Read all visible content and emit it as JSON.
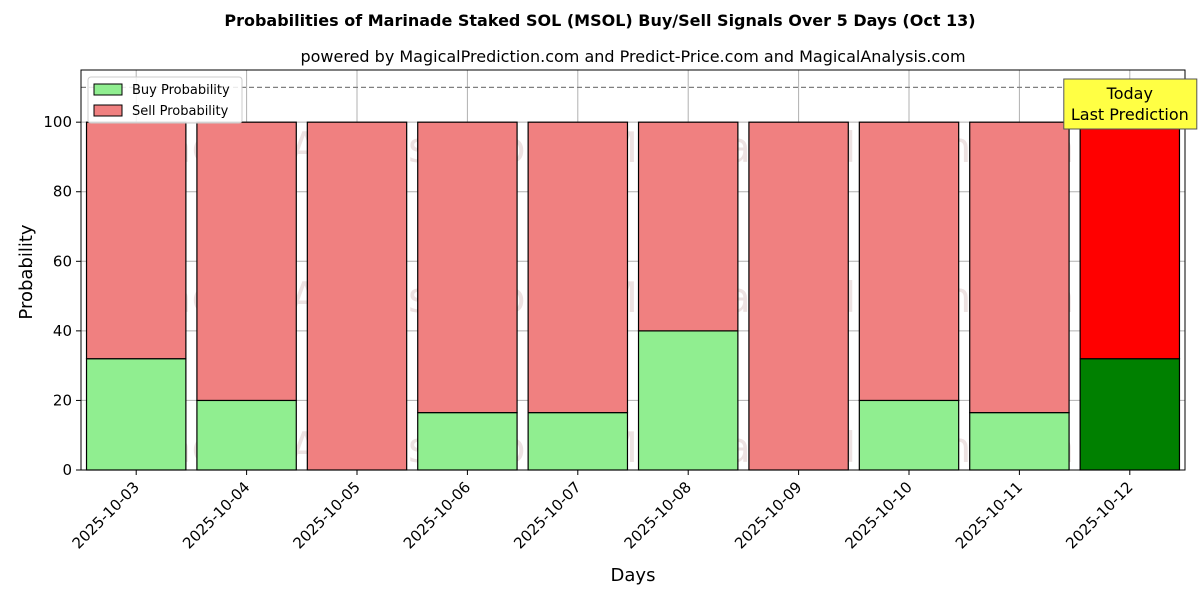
{
  "chart_data": {
    "type": "bar",
    "stacked": true,
    "title": "Probabilities of Marinade Staked SOL (MSOL) Buy/Sell Signals Over 5 Days (Oct 13)",
    "subtitle": "powered by MagicalPrediction.com and Predict-Price.com and MagicalAnalysis.com",
    "xlabel": "Days",
    "ylabel": "Probability",
    "ylim": [
      0,
      115
    ],
    "yticks": [
      0,
      20,
      40,
      60,
      80,
      100
    ],
    "reference_line": 110,
    "grid": true,
    "legend_position": "top-left",
    "categories": [
      "2025-10-03",
      "2025-10-04",
      "2025-10-05",
      "2025-10-06",
      "2025-10-07",
      "2025-10-08",
      "2025-10-09",
      "2025-10-10",
      "2025-10-11",
      "2025-10-12"
    ],
    "series": [
      {
        "name": "Buy Probability",
        "color": "#90ee90",
        "highlight_color": "#008000",
        "values": [
          32,
          20,
          0,
          16.5,
          16.5,
          40,
          0,
          20,
          16.5,
          32
        ]
      },
      {
        "name": "Sell Probability",
        "color": "#f08080",
        "highlight_color": "#ff0000",
        "values": [
          68,
          80,
          100,
          83.5,
          83.5,
          60,
          100,
          80,
          83.5,
          68
        ]
      }
    ],
    "highlight_index": 9,
    "annotation": {
      "lines": [
        "Today",
        "Last Prediction"
      ],
      "background": "#ffff44"
    },
    "watermarks": [
      "MagicalAnalysis.com",
      "MagicalPrediction.com"
    ]
  }
}
